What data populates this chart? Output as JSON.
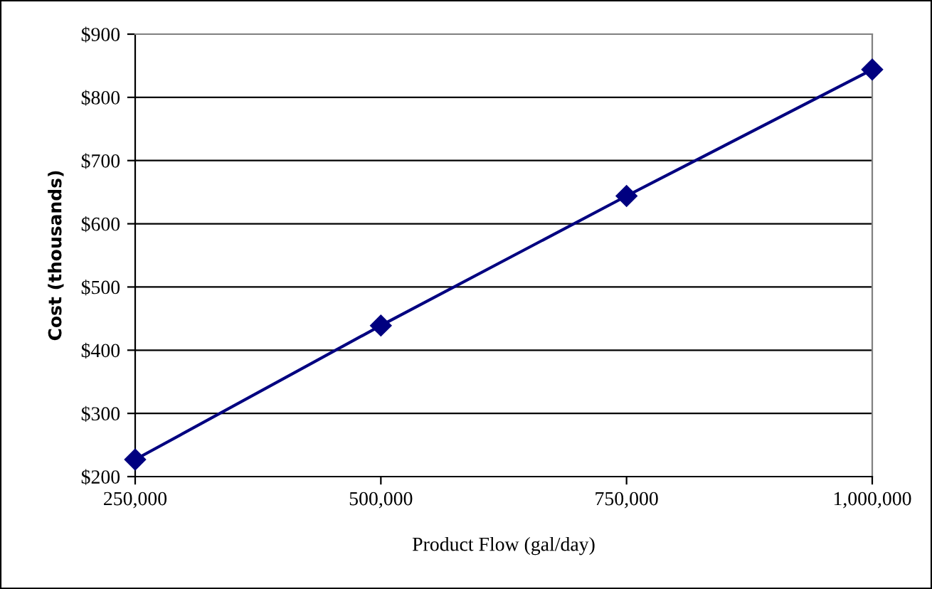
{
  "chart_data": {
    "type": "line",
    "xlabel": "Product Flow (gal/day)",
    "ylabel": "Cost (thousands)",
    "x": [
      250000,
      500000,
      750000,
      1000000
    ],
    "series": [
      {
        "color": "#000080",
        "values": [
          227,
          439,
          644,
          844
        ]
      }
    ],
    "xlim": [
      250000,
      1000000
    ],
    "xticks": [
      {
        "value": 250000,
        "label": "250,000"
      },
      {
        "value": 500000,
        "label": "500,000"
      },
      {
        "value": 750000,
        "label": "750,000"
      },
      {
        "value": 1000000,
        "label": "1,000,000"
      }
    ],
    "ylim": [
      200,
      900
    ],
    "yticks": [
      {
        "value": 200,
        "label": "$200"
      },
      {
        "value": 300,
        "label": "$300"
      },
      {
        "value": 400,
        "label": "$400"
      },
      {
        "value": 500,
        "label": "$500"
      },
      {
        "value": 600,
        "label": "$600"
      },
      {
        "value": 700,
        "label": "$700"
      },
      {
        "value": 800,
        "label": "$800"
      },
      {
        "value": 900,
        "label": "$900"
      }
    ],
    "grid": "y",
    "marker": "diamond",
    "line_style": "solid"
  }
}
